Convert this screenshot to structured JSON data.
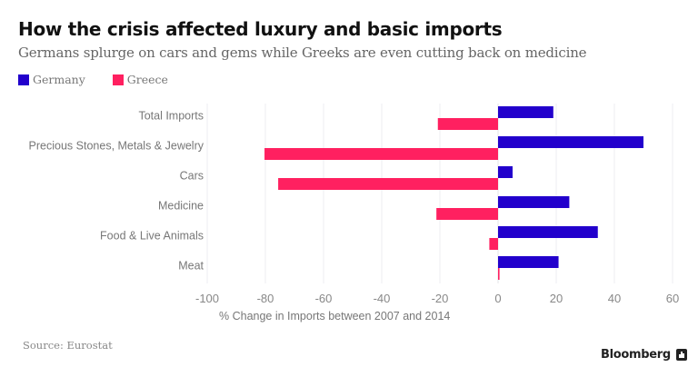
{
  "header": {
    "title": "How the crisis affected luxury and basic imports",
    "subtitle": "Germans splurge on cars and gems while Greeks are even cutting back on medicine"
  },
  "footer": {
    "source": "Source: Eurostat",
    "brand": "Bloomberg"
  },
  "colors": {
    "germany": "#2200cc",
    "greece": "#ff2060",
    "grid": "#ececf0",
    "label": "#777777"
  },
  "chart_data": {
    "type": "bar",
    "orientation": "horizontal",
    "title": "How the crisis affected luxury and basic imports",
    "subtitle": "Germans splurge on cars and gems while Greeks are even cutting back on medicine",
    "xlabel": "% Change in Imports between 2007 and 2014",
    "ylabel": "",
    "xlim": [
      -100,
      60
    ],
    "xticks": [
      -100,
      -80,
      -60,
      -40,
      -20,
      0,
      20,
      40,
      60
    ],
    "grid": true,
    "legend_position": "top-left",
    "categories": [
      "Total Imports",
      "Precious Stones, Metals & Jewelry",
      "Cars",
      "Medicine",
      "Food & Live Animals",
      "Meat"
    ],
    "series": [
      {
        "name": "Germany",
        "color": "#2200cc",
        "values": [
          19,
          50,
          5,
          24.5,
          34.3,
          20.8
        ]
      },
      {
        "name": "Greece",
        "color": "#ff2060",
        "values": [
          -20.7,
          -80.3,
          -75.6,
          -21.2,
          -3,
          0.5
        ]
      }
    ]
  }
}
